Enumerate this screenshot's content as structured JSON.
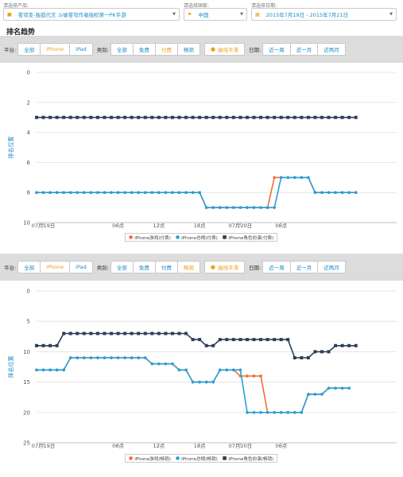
{
  "selectors": {
    "product": {
      "label": "请选择产品:",
      "value": "苍穹变-独孤代言 斗破苍穹作者授权第一PK手游"
    },
    "country": {
      "label": "请选择国家:",
      "value": "中国"
    },
    "date": {
      "label": "请选择日期:",
      "value": "2015年7月19日 - 2015年7月21日"
    }
  },
  "section_title": "排名趋势",
  "filters": {
    "platform_label": "平台:",
    "platforms": [
      "全部",
      "iPhone",
      "iPad"
    ],
    "type_label": "类别:",
    "types": [
      "全部",
      "免费",
      "付费",
      "畅销"
    ],
    "smooth_label": "曲线平滑",
    "date_label": "日期:",
    "ranges": [
      "近一周",
      "近一月",
      "近两月"
    ]
  },
  "colors": {
    "game": "#f26c3c",
    "total": "#2a9fd6",
    "role": "#2c3e5a",
    "accent": "#f0a020",
    "link": "#1a8bc7"
  },
  "chart_data": [
    {
      "type": "line",
      "ylabel": "排名位置",
      "ylim": [
        0,
        10
      ],
      "yticks": [
        0,
        2,
        4,
        6,
        8,
        10
      ],
      "xlim": [
        0,
        53
      ],
      "xticks": [
        {
          "x": 1,
          "label": "07月19日"
        },
        {
          "x": 12,
          "label": "06点"
        },
        {
          "x": 18,
          "label": "12点"
        },
        {
          "x": 24,
          "label": "18点"
        },
        {
          "x": 30,
          "label": "07月20日"
        },
        {
          "x": 36,
          "label": "06点"
        }
      ],
      "series": [
        {
          "name": "iPhone游戏(付费)",
          "color": "#f26c3c",
          "x": [
            0,
            1,
            2,
            3,
            4,
            5,
            6,
            7,
            8,
            9,
            10,
            11,
            12,
            13,
            14,
            15,
            16,
            17,
            18,
            19,
            20,
            21,
            22,
            23,
            24,
            25,
            26,
            27,
            28,
            29,
            30,
            31,
            32,
            33,
            34,
            35,
            36,
            37,
            38,
            39,
            40,
            41,
            42,
            43,
            44,
            45,
            46,
            47
          ],
          "values": [
            8,
            8,
            8,
            8,
            8,
            8,
            8,
            8,
            8,
            8,
            8,
            8,
            8,
            8,
            8,
            8,
            8,
            8,
            8,
            8,
            8,
            8,
            8,
            8,
            8,
            9,
            9,
            9,
            9,
            9,
            9,
            9,
            9,
            9,
            9,
            7,
            7,
            7,
            7,
            7,
            7,
            8,
            8,
            8,
            8,
            8,
            8,
            8
          ]
        },
        {
          "name": "iPhone总榜(付费)",
          "color": "#2a9fd6",
          "x": [
            0,
            1,
            2,
            3,
            4,
            5,
            6,
            7,
            8,
            9,
            10,
            11,
            12,
            13,
            14,
            15,
            16,
            17,
            18,
            19,
            20,
            21,
            22,
            23,
            24,
            25,
            26,
            27,
            28,
            29,
            30,
            31,
            32,
            33,
            34,
            35,
            36,
            37,
            38,
            39,
            40,
            41,
            42,
            43,
            44,
            45,
            46,
            47
          ],
          "values": [
            8,
            8,
            8,
            8,
            8,
            8,
            8,
            8,
            8,
            8,
            8,
            8,
            8,
            8,
            8,
            8,
            8,
            8,
            8,
            8,
            8,
            8,
            8,
            8,
            8,
            9,
            9,
            9,
            9,
            9,
            9,
            9,
            9,
            9,
            9,
            9,
            7,
            7,
            7,
            7,
            7,
            8,
            8,
            8,
            8,
            8,
            8,
            8
          ]
        },
        {
          "name": "iPhone角色扮演(付费)",
          "color": "#2c3e5a",
          "x": [
            0,
            1,
            2,
            3,
            4,
            5,
            6,
            7,
            8,
            9,
            10,
            11,
            12,
            13,
            14,
            15,
            16,
            17,
            18,
            19,
            20,
            21,
            22,
            23,
            24,
            25,
            26,
            27,
            28,
            29,
            30,
            31,
            32,
            33,
            34,
            35,
            36,
            37,
            38,
            39,
            40,
            41,
            42,
            43,
            44,
            45,
            46,
            47
          ],
          "values": [
            3,
            3,
            3,
            3,
            3,
            3,
            3,
            3,
            3,
            3,
            3,
            3,
            3,
            3,
            3,
            3,
            3,
            3,
            3,
            3,
            3,
            3,
            3,
            3,
            3,
            3,
            3,
            3,
            3,
            3,
            3,
            3,
            3,
            3,
            3,
            3,
            3,
            3,
            3,
            3,
            3,
            3,
            3,
            3,
            3,
            3,
            3,
            3
          ]
        }
      ]
    },
    {
      "type": "line",
      "ylabel": "排名位置",
      "ylim": [
        0,
        25
      ],
      "yticks": [
        0,
        5,
        10,
        15,
        20,
        25
      ],
      "xlim": [
        0,
        53
      ],
      "xticks": [
        {
          "x": 1,
          "label": "07月19日"
        },
        {
          "x": 12,
          "label": "06点"
        },
        {
          "x": 18,
          "label": "12点"
        },
        {
          "x": 24,
          "label": "18点"
        },
        {
          "x": 30,
          "label": "07月20日"
        },
        {
          "x": 36,
          "label": "06点"
        }
      ],
      "series": [
        {
          "name": "iPhone游戏(畅销)",
          "color": "#f26c3c",
          "x": [
            0,
            1,
            2,
            3,
            4,
            5,
            6,
            7,
            8,
            9,
            10,
            11,
            12,
            13,
            14,
            15,
            16,
            17,
            18,
            19,
            20,
            21,
            22,
            23,
            24,
            25,
            26,
            27,
            28,
            29,
            30,
            31,
            32,
            33,
            34,
            35,
            36,
            37,
            38,
            39,
            40,
            41,
            42,
            43,
            44,
            45,
            46
          ],
          "values": [
            13,
            13,
            13,
            13,
            13,
            11,
            11,
            11,
            11,
            11,
            11,
            11,
            11,
            11,
            11,
            11,
            11,
            12,
            12,
            12,
            12,
            13,
            13,
            15,
            15,
            15,
            15,
            13,
            13,
            13,
            14,
            14,
            14,
            14,
            20,
            20,
            20,
            20,
            20,
            20,
            17,
            17,
            17,
            16,
            16,
            16,
            16
          ]
        },
        {
          "name": "iPhone总榜(畅销)",
          "color": "#2a9fd6",
          "x": [
            0,
            1,
            2,
            3,
            4,
            5,
            6,
            7,
            8,
            9,
            10,
            11,
            12,
            13,
            14,
            15,
            16,
            17,
            18,
            19,
            20,
            21,
            22,
            23,
            24,
            25,
            26,
            27,
            28,
            29,
            30,
            31,
            32,
            33,
            34,
            35,
            36,
            37,
            38,
            39,
            40,
            41,
            42,
            43,
            44,
            45,
            46
          ],
          "values": [
            13,
            13,
            13,
            13,
            13,
            11,
            11,
            11,
            11,
            11,
            11,
            11,
            11,
            11,
            11,
            11,
            11,
            12,
            12,
            12,
            12,
            13,
            13,
            15,
            15,
            15,
            15,
            13,
            13,
            13,
            13,
            20,
            20,
            20,
            20,
            20,
            20,
            20,
            20,
            20,
            17,
            17,
            17,
            16,
            16,
            16,
            16
          ]
        },
        {
          "name": "iPhone角色扮演(畅销)",
          "color": "#2c3e5a",
          "x": [
            0,
            1,
            2,
            3,
            4,
            5,
            6,
            7,
            8,
            9,
            10,
            11,
            12,
            13,
            14,
            15,
            16,
            17,
            18,
            19,
            20,
            21,
            22,
            23,
            24,
            25,
            26,
            27,
            28,
            29,
            30,
            31,
            32,
            33,
            34,
            35,
            36,
            37,
            38,
            39,
            40,
            41,
            42,
            43,
            44,
            45,
            46,
            47
          ],
          "values": [
            9,
            9,
            9,
            9,
            7,
            7,
            7,
            7,
            7,
            7,
            7,
            7,
            7,
            7,
            7,
            7,
            7,
            7,
            7,
            7,
            7,
            7,
            7,
            8,
            8,
            9,
            9,
            8,
            8,
            8,
            8,
            8,
            8,
            8,
            8,
            8,
            8,
            8,
            11,
            11,
            11,
            10,
            10,
            10,
            9,
            9,
            9,
            9
          ]
        }
      ]
    }
  ]
}
